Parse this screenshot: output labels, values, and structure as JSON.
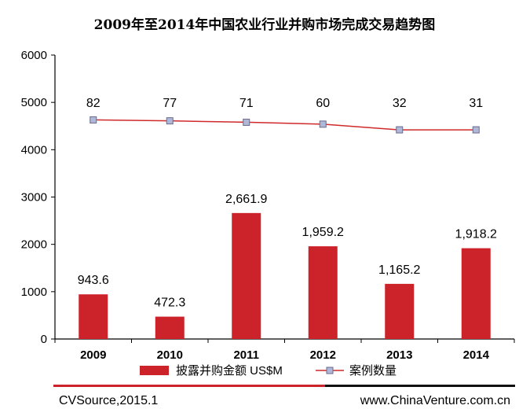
{
  "chart_data": {
    "type": "bar",
    "title": "2009年至2014年中国农业行业并购市场完成交易趋势图",
    "categories": [
      "2009",
      "2010",
      "2011",
      "2012",
      "2013",
      "2014"
    ],
    "ylim": [
      0,
      6000
    ],
    "yticks": [
      "0",
      "1000",
      "2000",
      "3000",
      "4000",
      "5000",
      "6000"
    ],
    "series": [
      {
        "name": "披露并购金额 US$M",
        "kind": "bar",
        "color": "#cc2229",
        "values": [
          943.6,
          472.3,
          2661.9,
          1959.2,
          1165.2,
          1918.2
        ],
        "labels": [
          "943.6",
          "472.3",
          "2,661.9",
          "1,959.2",
          "1,165.2",
          "1,918.2"
        ]
      },
      {
        "name": "案例数量",
        "kind": "line",
        "color": "#d02a2a",
        "marker_color": "#b0b8d8",
        "values": [
          82,
          77,
          71,
          60,
          32,
          31
        ],
        "labels": [
          "82",
          "77",
          "71",
          "60",
          "32",
          "31"
        ],
        "plot_y": [
          4630,
          4610,
          4580,
          4540,
          4420,
          4420
        ]
      }
    ]
  },
  "footer": {
    "source": "CVSource,2015.1",
    "url": "www.ChinaVenture.com.cn"
  }
}
